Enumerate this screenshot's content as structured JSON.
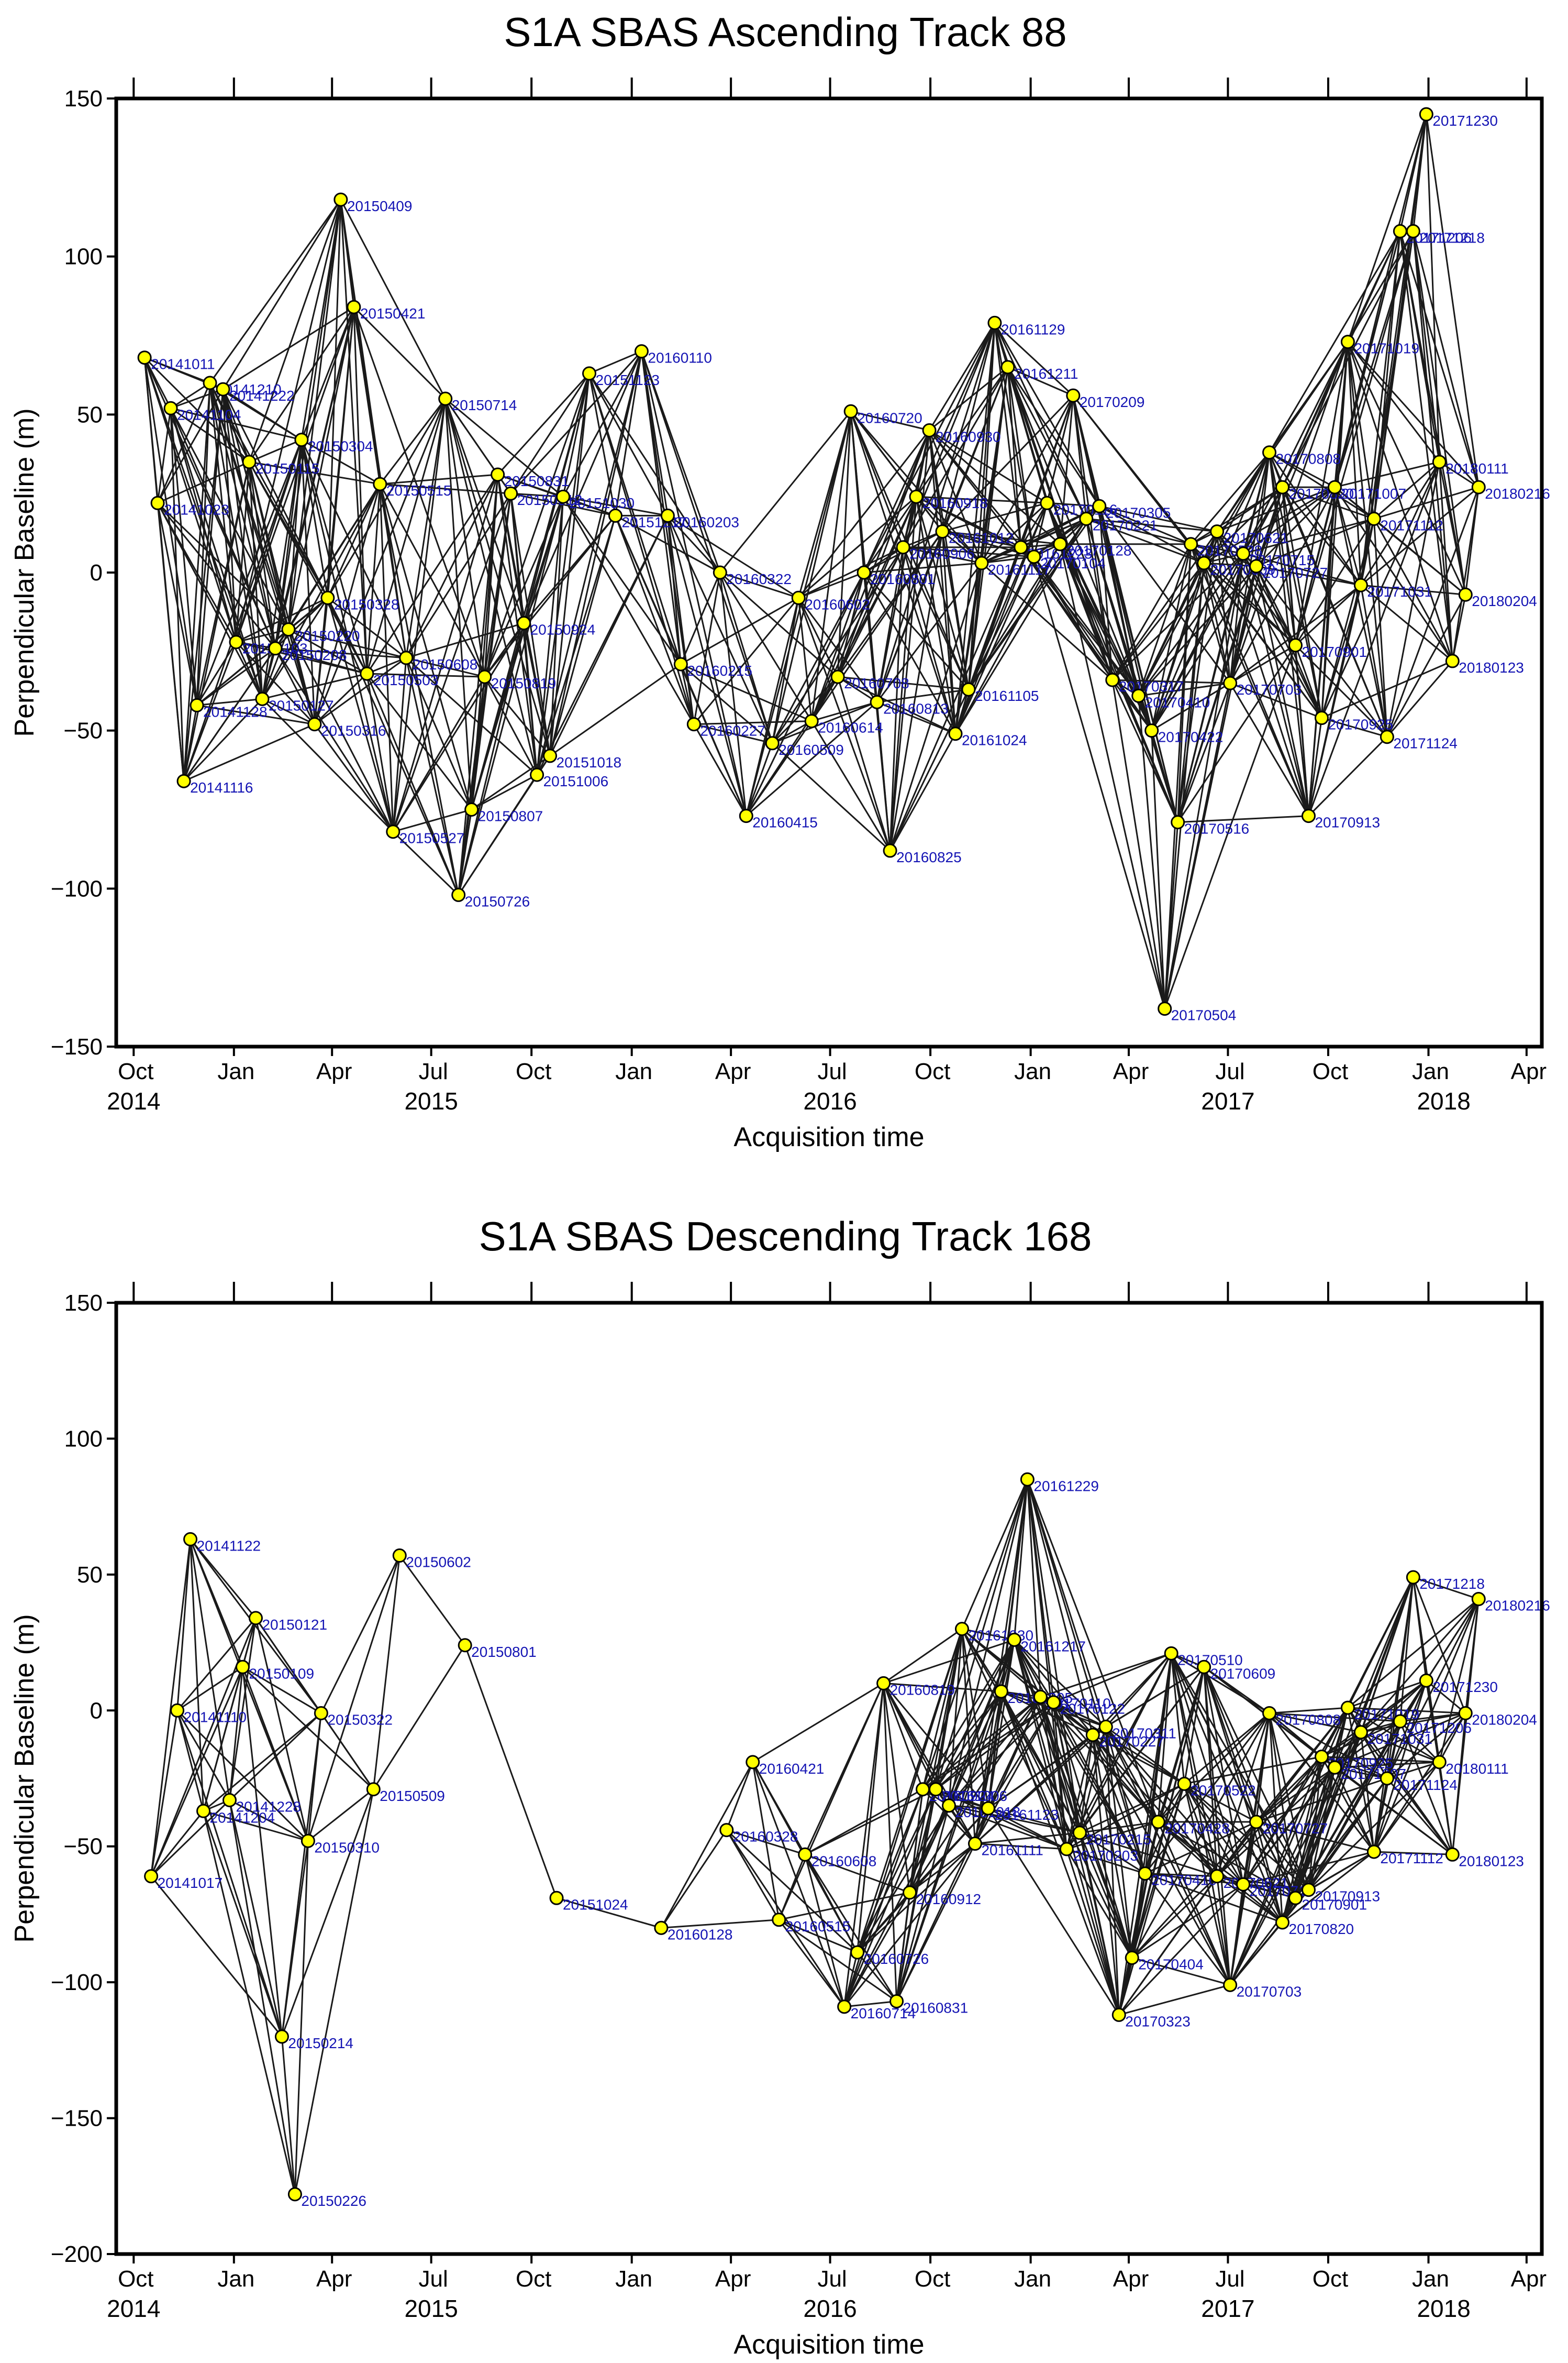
{
  "chart_data": [
    {
      "type": "network",
      "title": "S1A SBAS Ascending Track 88",
      "xlabel": "Acquisition time",
      "ylabel": "Perpendicular Baseline (m)",
      "ylim": [
        -150,
        150
      ],
      "xlim": [
        "2014-09-15",
        "2018-04-15"
      ],
      "yticks": [
        -150,
        -100,
        -50,
        0,
        50,
        100,
        150
      ],
      "ytick_labels": [
        "−150",
        "−100",
        "−50",
        "0",
        "50",
        "100",
        "150"
      ],
      "xticks": [
        {
          "label": "Oct",
          "date": "2014-10-01"
        },
        {
          "label": "Jan",
          "date": "2015-01-01"
        },
        {
          "label": "Apr",
          "date": "2015-04-01"
        },
        {
          "label": "Jul",
          "date": "2015-07-01"
        },
        {
          "label": "Oct",
          "date": "2015-10-01"
        },
        {
          "label": "Jan",
          "date": "2016-01-01"
        },
        {
          "label": "Apr",
          "date": "2016-04-01"
        },
        {
          "label": "Jul",
          "date": "2016-07-01"
        },
        {
          "label": "Oct",
          "date": "2016-10-01"
        },
        {
          "label": "Jan",
          "date": "2017-01-01"
        },
        {
          "label": "Apr",
          "date": "2017-04-01"
        },
        {
          "label": "Jul",
          "date": "2017-07-01"
        },
        {
          "label": "Oct",
          "date": "2017-10-01"
        },
        {
          "label": "Jan",
          "date": "2018-01-01"
        },
        {
          "label": "Apr",
          "date": "2018-04-01"
        }
      ],
      "years": [
        {
          "label": "2014",
          "date": "2014-10-01"
        },
        {
          "label": "2015",
          "date": "2015-07-01"
        },
        {
          "label": "2016",
          "date": "2016-07-01"
        },
        {
          "label": "2017",
          "date": "2017-07-01"
        },
        {
          "label": "2018",
          "date": "2018-01-15"
        }
      ],
      "points": [
        {
          "date": "20141011",
          "b": 68
        },
        {
          "date": "20141023",
          "b": 22
        },
        {
          "date": "20141104",
          "b": 52
        },
        {
          "date": "20141116",
          "b": -66
        },
        {
          "date": "20141128",
          "b": -42
        },
        {
          "date": "20141210",
          "b": 60
        },
        {
          "date": "20141222",
          "b": 58
        },
        {
          "date": "20150103",
          "b": -22
        },
        {
          "date": "20150115",
          "b": 35
        },
        {
          "date": "20150127",
          "b": -40
        },
        {
          "date": "20150208",
          "b": -24
        },
        {
          "date": "20150220",
          "b": -18
        },
        {
          "date": "20150304",
          "b": 42
        },
        {
          "date": "20150316",
          "b": -48
        },
        {
          "date": "20150328",
          "b": -8
        },
        {
          "date": "20150409",
          "b": 118
        },
        {
          "date": "20150421",
          "b": 84
        },
        {
          "date": "20150503",
          "b": -32
        },
        {
          "date": "20150515",
          "b": 28
        },
        {
          "date": "20150527",
          "b": -82
        },
        {
          "date": "20150608",
          "b": -27
        },
        {
          "date": "20150714",
          "b": 55
        },
        {
          "date": "20150726",
          "b": -102
        },
        {
          "date": "20150807",
          "b": -75
        },
        {
          "date": "20150819",
          "b": -33
        },
        {
          "date": "20150831",
          "b": 31
        },
        {
          "date": "20150912",
          "b": 25
        },
        {
          "date": "20150924",
          "b": -16
        },
        {
          "date": "20151006",
          "b": -64
        },
        {
          "date": "20151018",
          "b": -58
        },
        {
          "date": "20151030",
          "b": 24
        },
        {
          "date": "20151123",
          "b": 63
        },
        {
          "date": "20151217",
          "b": 18
        },
        {
          "date": "20160110",
          "b": 70
        },
        {
          "date": "20160203",
          "b": 18
        },
        {
          "date": "20160215",
          "b": -29
        },
        {
          "date": "20160227",
          "b": -48
        },
        {
          "date": "20160322",
          "b": 0
        },
        {
          "date": "20160415",
          "b": -77
        },
        {
          "date": "20160509",
          "b": -54
        },
        {
          "date": "20160602",
          "b": -8
        },
        {
          "date": "20160614",
          "b": -47
        },
        {
          "date": "20160708",
          "b": -33
        },
        {
          "date": "20160720",
          "b": 51
        },
        {
          "date": "20160801",
          "b": 0
        },
        {
          "date": "20160813",
          "b": -41
        },
        {
          "date": "20160825",
          "b": -88
        },
        {
          "date": "20160906",
          "b": 8
        },
        {
          "date": "20160918",
          "b": 24
        },
        {
          "date": "20160930",
          "b": 45
        },
        {
          "date": "20161012",
          "b": 13
        },
        {
          "date": "20161024",
          "b": -51
        },
        {
          "date": "20161105",
          "b": -37
        },
        {
          "date": "20161117",
          "b": 3
        },
        {
          "date": "20161129",
          "b": 79
        },
        {
          "date": "20161211",
          "b": 65
        },
        {
          "date": "20161223",
          "b": 8
        },
        {
          "date": "20170104",
          "b": 5
        },
        {
          "date": "20170116",
          "b": 22
        },
        {
          "date": "20170128",
          "b": 9
        },
        {
          "date": "20170209",
          "b": 56
        },
        {
          "date": "20170221",
          "b": 17
        },
        {
          "date": "20170305",
          "b": 21
        },
        {
          "date": "20170317",
          "b": -34
        },
        {
          "date": "20170410",
          "b": -39
        },
        {
          "date": "20170422",
          "b": -50
        },
        {
          "date": "20170504",
          "b": -138
        },
        {
          "date": "20170516",
          "b": -79
        },
        {
          "date": "20170528",
          "b": 9
        },
        {
          "date": "20170609",
          "b": 3
        },
        {
          "date": "20170621",
          "b": 13
        },
        {
          "date": "20170703",
          "b": -35
        },
        {
          "date": "20170715",
          "b": 6
        },
        {
          "date": "20170727",
          "b": 2
        },
        {
          "date": "20170808",
          "b": 38
        },
        {
          "date": "20170820",
          "b": 27
        },
        {
          "date": "20170901",
          "b": -23
        },
        {
          "date": "20170913",
          "b": -77
        },
        {
          "date": "20170925",
          "b": -46
        },
        {
          "date": "20171007",
          "b": 27
        },
        {
          "date": "20171019",
          "b": 73
        },
        {
          "date": "20171031",
          "b": -4
        },
        {
          "date": "20171112",
          "b": 17
        },
        {
          "date": "20171124",
          "b": -52
        },
        {
          "date": "20171206",
          "b": 108
        },
        {
          "date": "20171218",
          "b": 108
        },
        {
          "date": "20171230",
          "b": 145
        },
        {
          "date": "20180111",
          "b": 35
        },
        {
          "date": "20180123",
          "b": -28
        },
        {
          "date": "20180204",
          "b": -7
        },
        {
          "date": "20180216",
          "b": 27
        }
      ]
    },
    {
      "type": "network",
      "title": "S1A SBAS Descending Track 168",
      "xlabel": "Acquisition time",
      "ylabel": "Perpendicular Baseline (m)",
      "ylim": [
        -200,
        150
      ],
      "xlim": [
        "2014-09-15",
        "2018-04-15"
      ],
      "yticks": [
        -200,
        -150,
        -100,
        -50,
        0,
        50,
        100,
        150
      ],
      "ytick_labels": [
        "−200",
        "−150",
        "−100",
        "−50",
        "0",
        "50",
        "100",
        "150"
      ],
      "xticks": [
        {
          "label": "Oct",
          "date": "2014-10-01"
        },
        {
          "label": "Jan",
          "date": "2015-01-01"
        },
        {
          "label": "Apr",
          "date": "2015-04-01"
        },
        {
          "label": "Jul",
          "date": "2015-07-01"
        },
        {
          "label": "Oct",
          "date": "2015-10-01"
        },
        {
          "label": "Jan",
          "date": "2016-01-01"
        },
        {
          "label": "Apr",
          "date": "2016-04-01"
        },
        {
          "label": "Jul",
          "date": "2016-07-01"
        },
        {
          "label": "Oct",
          "date": "2016-10-01"
        },
        {
          "label": "Jan",
          "date": "2017-01-01"
        },
        {
          "label": "Apr",
          "date": "2017-04-01"
        },
        {
          "label": "Jul",
          "date": "2017-07-01"
        },
        {
          "label": "Oct",
          "date": "2017-10-01"
        },
        {
          "label": "Jan",
          "date": "2018-01-01"
        },
        {
          "label": "Apr",
          "date": "2018-04-01"
        }
      ],
      "years": [
        {
          "label": "2014",
          "date": "2014-10-01"
        },
        {
          "label": "2015",
          "date": "2015-07-01"
        },
        {
          "label": "2016",
          "date": "2016-07-01"
        },
        {
          "label": "2017",
          "date": "2017-07-01"
        },
        {
          "label": "2018",
          "date": "2018-01-15"
        }
      ],
      "points": [
        {
          "date": "20141017",
          "b": -61
        },
        {
          "date": "20141110",
          "b": 0
        },
        {
          "date": "20141122",
          "b": 63
        },
        {
          "date": "20141204",
          "b": -37
        },
        {
          "date": "20141228",
          "b": -33
        },
        {
          "date": "20150109",
          "b": 16
        },
        {
          "date": "20150121",
          "b": 34
        },
        {
          "date": "20150214",
          "b": -120
        },
        {
          "date": "20150226",
          "b": -178
        },
        {
          "date": "20150310",
          "b": -48
        },
        {
          "date": "20150322",
          "b": -1
        },
        {
          "date": "20150509",
          "b": -29
        },
        {
          "date": "20150602",
          "b": 57
        },
        {
          "date": "20150801",
          "b": 24
        },
        {
          "date": "20151024",
          "b": -69
        },
        {
          "date": "20160128",
          "b": -80
        },
        {
          "date": "20160328",
          "b": -44
        },
        {
          "date": "20160421",
          "b": -19
        },
        {
          "date": "20160515",
          "b": -77
        },
        {
          "date": "20160608",
          "b": -53
        },
        {
          "date": "20160714",
          "b": -109
        },
        {
          "date": "20160726",
          "b": -89
        },
        {
          "date": "20160819",
          "b": 10
        },
        {
          "date": "20160831",
          "b": -107
        },
        {
          "date": "20160912",
          "b": -67
        },
        {
          "date": "20160924",
          "b": -29
        },
        {
          "date": "20161006",
          "b": -29
        },
        {
          "date": "20161018",
          "b": -35
        },
        {
          "date": "20161030",
          "b": 30
        },
        {
          "date": "20161111",
          "b": -49
        },
        {
          "date": "20161123",
          "b": -36
        },
        {
          "date": "20161205",
          "b": 7
        },
        {
          "date": "20161217",
          "b": 26
        },
        {
          "date": "20161229",
          "b": 85
        },
        {
          "date": "20170110",
          "b": 5
        },
        {
          "date": "20170122",
          "b": 3
        },
        {
          "date": "20170203",
          "b": -51
        },
        {
          "date": "20170215",
          "b": -45
        },
        {
          "date": "20170227",
          "b": -9
        },
        {
          "date": "20170311",
          "b": -6
        },
        {
          "date": "20170323",
          "b": -112
        },
        {
          "date": "20170404",
          "b": -91
        },
        {
          "date": "20170416",
          "b": -60
        },
        {
          "date": "20170428",
          "b": -41
        },
        {
          "date": "20170510",
          "b": 21
        },
        {
          "date": "20170522",
          "b": -27
        },
        {
          "date": "20170609",
          "b": 16
        },
        {
          "date": "20170621",
          "b": -61
        },
        {
          "date": "20170703",
          "b": -101
        },
        {
          "date": "20170715",
          "b": -64
        },
        {
          "date": "20170727",
          "b": -41
        },
        {
          "date": "20170808",
          "b": -1
        },
        {
          "date": "20170820",
          "b": -78
        },
        {
          "date": "20170901",
          "b": -69
        },
        {
          "date": "20170913",
          "b": -66
        },
        {
          "date": "20170925",
          "b": -17
        },
        {
          "date": "20171007",
          "b": -21
        },
        {
          "date": "20171019",
          "b": 1
        },
        {
          "date": "20171031",
          "b": -8
        },
        {
          "date": "20171112",
          "b": -52
        },
        {
          "date": "20171124",
          "b": -25
        },
        {
          "date": "20171206",
          "b": -4
        },
        {
          "date": "20171218",
          "b": 49
        },
        {
          "date": "20171230",
          "b": 11
        },
        {
          "date": "20180111",
          "b": -19
        },
        {
          "date": "20180123",
          "b": -53
        },
        {
          "date": "20180204",
          "b": -1
        },
        {
          "date": "20180216",
          "b": 41
        }
      ]
    }
  ]
}
